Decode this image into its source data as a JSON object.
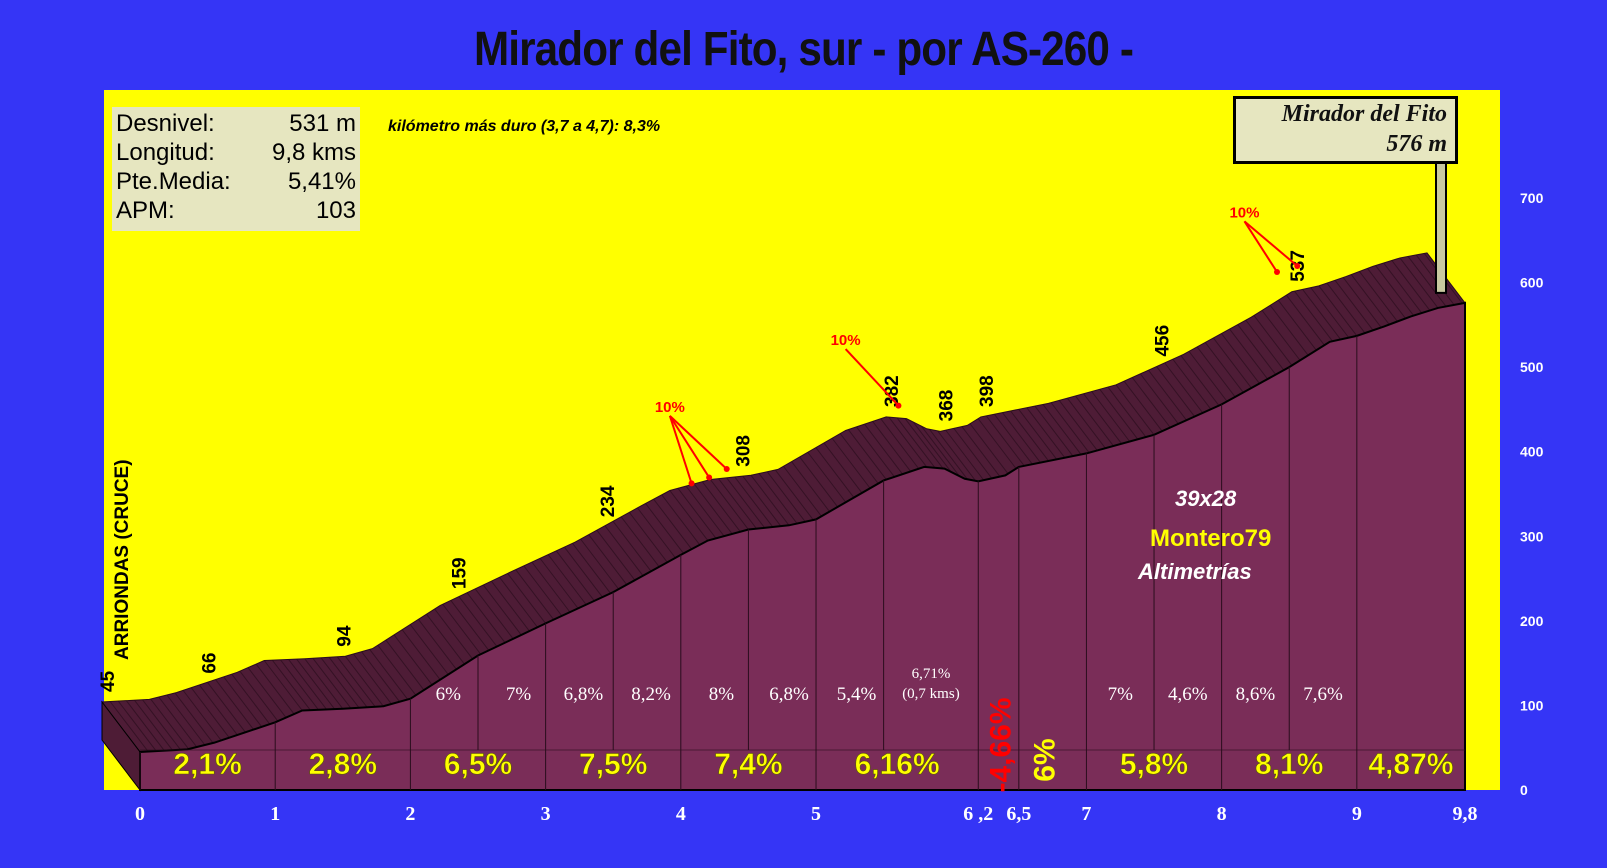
{
  "title": "Mirador del Fito, sur - por AS-260 -",
  "stats": [
    {
      "label": "Desnivel:",
      "value": "531 m"
    },
    {
      "label": "Longitud:",
      "value": "9,8 kms"
    },
    {
      "label": "Pte.Media:",
      "value": "5,41%"
    },
    {
      "label": "APM:",
      "value": "103"
    }
  ],
  "note": "kilómetro más duro (3,7 a 4,7):  8,3%",
  "summit": {
    "name": "Mirador del Fito",
    "altitude": "576 m"
  },
  "start_label": "ARRIONDAS (CRUCE)",
  "credits": {
    "ratio": "39x28",
    "author": "Montero79",
    "site": "Altimetrías"
  },
  "colors": {
    "background": "#3535f6",
    "sky": "#ffff00",
    "profile": "#7a2d58",
    "ridge": "#4e1c36",
    "km_label": "#ffff00",
    "accent": "#ff0000"
  },
  "chart_data": {
    "type": "area",
    "x": [
      0,
      0.35,
      0.55,
      1,
      1.2,
      1.5,
      1.8,
      2,
      2.5,
      3,
      3.5,
      4,
      4.2,
      4.5,
      4.8,
      5,
      5.5,
      5.8,
      5.95,
      6.1,
      6.2,
      6.4,
      6.5,
      7,
      7.5,
      8,
      8.5,
      8.8,
      9,
      9.2,
      9.4,
      9.6,
      9.8
    ],
    "y": [
      45,
      48,
      56,
      80,
      94,
      96,
      99,
      108,
      159,
      197,
      234,
      278,
      295,
      308,
      313,
      320,
      366,
      382,
      380,
      368,
      365,
      372,
      382,
      398,
      420,
      456,
      500,
      530,
      537,
      548,
      560,
      570,
      576
    ],
    "ylim": [
      0,
      700
    ],
    "xlim": [
      0,
      9.8
    ],
    "ytick_values": [
      0,
      100,
      200,
      300,
      400,
      500,
      600,
      700
    ],
    "x_ticks": [
      {
        "x": 0,
        "label": "0"
      },
      {
        "x": 1,
        "label": "1"
      },
      {
        "x": 2,
        "label": "2"
      },
      {
        "x": 3,
        "label": "3"
      },
      {
        "x": 4,
        "label": "4"
      },
      {
        "x": 5,
        "label": "5"
      },
      {
        "x": 6.2,
        "label": "6 ,2"
      },
      {
        "x": 6.5,
        "label": "6,5"
      },
      {
        "x": 7,
        "label": "7"
      },
      {
        "x": 8,
        "label": "8"
      },
      {
        "x": 9,
        "label": "9"
      },
      {
        "x": 9.8,
        "label": "9,8"
      }
    ],
    "altitude_labels": [
      {
        "x": 0,
        "label": "45"
      },
      {
        "x": 0.75,
        "label": "66"
      },
      {
        "x": 1.75,
        "label": "94"
      },
      {
        "x": 2.6,
        "label": "159"
      },
      {
        "x": 3.7,
        "label": "234"
      },
      {
        "x": 4.7,
        "label": "308"
      },
      {
        "x": 5.8,
        "label": "382"
      },
      {
        "x": 6.2,
        "label": "368"
      },
      {
        "x": 6.5,
        "label": "398"
      },
      {
        "x": 7.8,
        "label": "456"
      },
      {
        "x": 8.8,
        "label": "537"
      }
    ],
    "km_gradients": [
      {
        "from": 0,
        "to": 1,
        "label": "2,1%"
      },
      {
        "from": 1,
        "to": 2,
        "label": "2,8%"
      },
      {
        "from": 2,
        "to": 3,
        "label": "6,5%"
      },
      {
        "from": 3,
        "to": 4,
        "label": "7,5%"
      },
      {
        "from": 4,
        "to": 5,
        "label": "7,4%"
      },
      {
        "from": 5,
        "to": 6.2,
        "label": "6,16%"
      },
      {
        "from": 6.2,
        "to": 6.5,
        "label": "-4,66%",
        "negative": true
      },
      {
        "from": 6.5,
        "to": 7,
        "label": "6%",
        "vertical": true
      },
      {
        "from": 7,
        "to": 8,
        "label": "5,8%"
      },
      {
        "from": 8,
        "to": 9,
        "label": "8,1%"
      },
      {
        "from": 9,
        "to": 9.8,
        "label": "4,87%"
      }
    ],
    "sub_gradients": [
      {
        "x": 2.28,
        "label": "6%"
      },
      {
        "x": 2.8,
        "label": "7%"
      },
      {
        "x": 3.28,
        "label": "6,8%"
      },
      {
        "x": 3.78,
        "label": "8,2%"
      },
      {
        "x": 4.3,
        "label": "8%"
      },
      {
        "x": 4.8,
        "label": "6,8%"
      },
      {
        "x": 5.3,
        "label": "5,4%"
      },
      {
        "x": 7.25,
        "label": "7%"
      },
      {
        "x": 7.75,
        "label": "4,6%"
      },
      {
        "x": 8.25,
        "label": "8,6%"
      },
      {
        "x": 8.75,
        "label": "7,6%"
      }
    ],
    "sub_gradient_note": {
      "x": 5.85,
      "line1": "6,71%",
      "line2": "(0,7 kms)"
    },
    "sub_dividers": [
      2.5,
      3.5,
      4.5,
      5.5,
      7.5,
      8.5
    ],
    "max_markers": [
      {
        "label": "10%",
        "label_x": 4.2,
        "label_y": 388,
        "targets": [
          [
            4.22,
            333
          ],
          [
            4.35,
            340
          ],
          [
            4.48,
            350
          ]
        ]
      },
      {
        "label": "10%",
        "label_x": 5.5,
        "label_y": 467,
        "targets": [
          [
            5.75,
            425
          ]
        ]
      },
      {
        "label": "10%",
        "label_x": 8.45,
        "label_y": 618,
        "targets": [
          [
            8.55,
            583
          ],
          [
            8.7,
            590
          ]
        ]
      }
    ]
  }
}
